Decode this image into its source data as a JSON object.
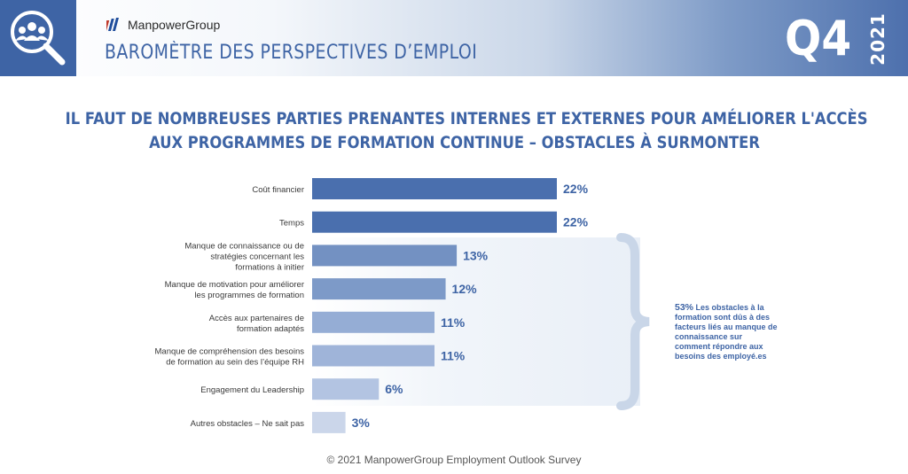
{
  "header": {
    "brand": "ManpowerGroup",
    "barometer_title": "BAROMÈTRE DES PERSPECTIVES D’EMPLOI",
    "quarter": "Q4",
    "year": "2021",
    "icon": "people-search-icon"
  },
  "chart_title_line1": "IL FAUT DE NOMBREUSES PARTIES PRENANTES INTERNES ET EXTERNES POUR AMÉLIORER L'ACCÈS",
  "chart_title_line2": "AUX PROGRAMMES DE FORMATION CONTINUE – OBSTACLES À SURMONTER",
  "note": {
    "percent": "53%",
    "text": "Les obstacles à la formation sont dûs à des facteurs liés au manque de connaissance sur comment répondre aux besoins des employé.es"
  },
  "footer": "© 2021 ManpowerGroup Employment Outlook Survey",
  "colors": {
    "brand_blue": "#3e64a5",
    "bar_shades": [
      "#4a6fae",
      "#4a6fae",
      "#7391c2",
      "#7d9ac8",
      "#95add5",
      "#9fb4d9",
      "#b3c4e2",
      "#cbd6ea"
    ]
  },
  "chart_data": {
    "type": "bar",
    "orientation": "horizontal",
    "categories": [
      [
        "Coût financier"
      ],
      [
        "Temps"
      ],
      [
        "Manque de connaissance ou de",
        "stratégies concernant les",
        "formations à initier"
      ],
      [
        "Manque de motivation pour améliorer",
        "les programmes de formation"
      ],
      [
        "Accès aux partenaires de",
        "formation adaptés"
      ],
      [
        "Manque de compréhension des besoins",
        "de formation au sein des l’équipe RH"
      ],
      [
        "Engagement du Leadership"
      ],
      [
        "Autres obstacles – Ne sait pas"
      ]
    ],
    "values": [
      22,
      22,
      13,
      12,
      11,
      11,
      6,
      3
    ],
    "value_labels": [
      "22%",
      "22%",
      "13%",
      "12%",
      "11%",
      "11%",
      "6%",
      "3%"
    ],
    "xlim": [
      0,
      22
    ]
  }
}
